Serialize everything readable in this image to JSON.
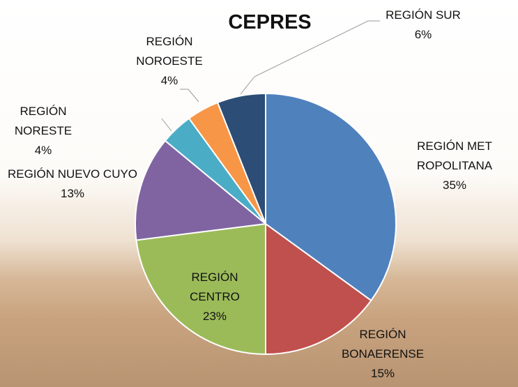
{
  "chart_data": {
    "type": "pie",
    "title": "CEPRES",
    "categories": [
      "REGIÓN METROPOLITANA",
      "REGIÓN BONAERENSE",
      "REGIÓN CENTRO",
      "REGIÓN NUEVO CUYO",
      "REGIÓN NORESTE",
      "REGIÓN NOROESTE",
      "REGIÓN SUR"
    ],
    "values": [
      35,
      15,
      23,
      13,
      4,
      4,
      6
    ],
    "value_labels": [
      "35%",
      "15%",
      "23%",
      "13%",
      "4%",
      "4%",
      "6%"
    ],
    "colors": [
      "#4f81bd",
      "#c0504d",
      "#9bbb59",
      "#8064a2",
      "#4bacc6",
      "#f79646",
      "#2c4d75"
    ]
  }
}
